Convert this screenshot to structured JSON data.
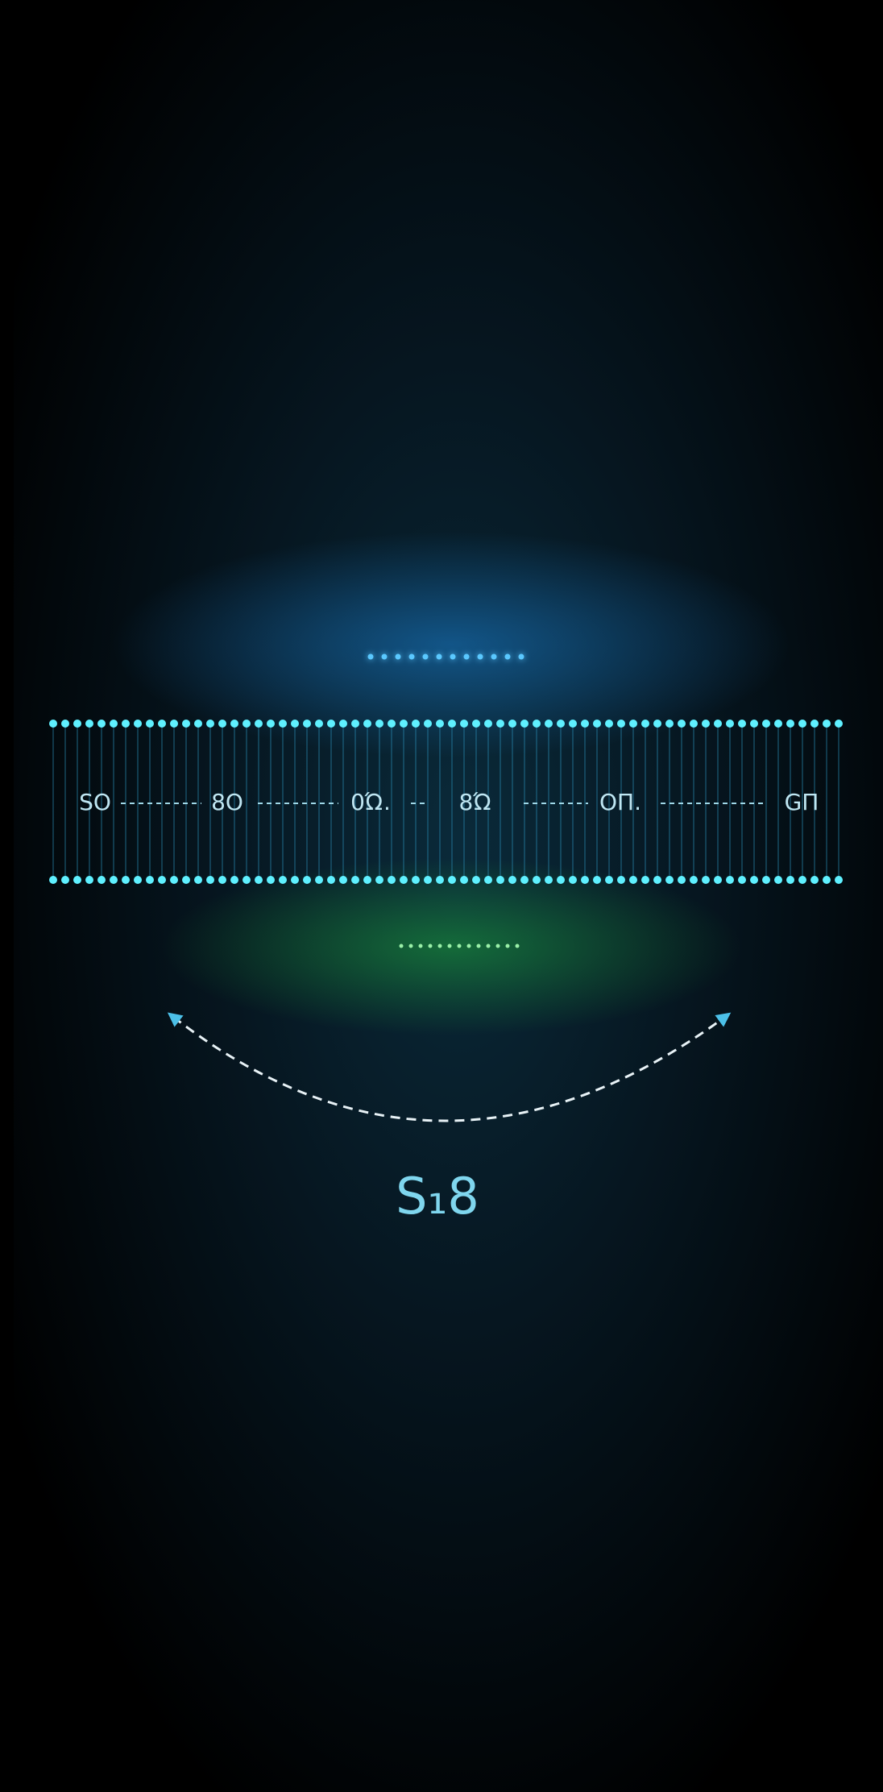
{
  "flow_labels": [
    "SO",
    "8O",
    "0Ώ.",
    "8Ώ",
    "OΠ.",
    "GΠ"
  ],
  "caption": "S₁8"
}
